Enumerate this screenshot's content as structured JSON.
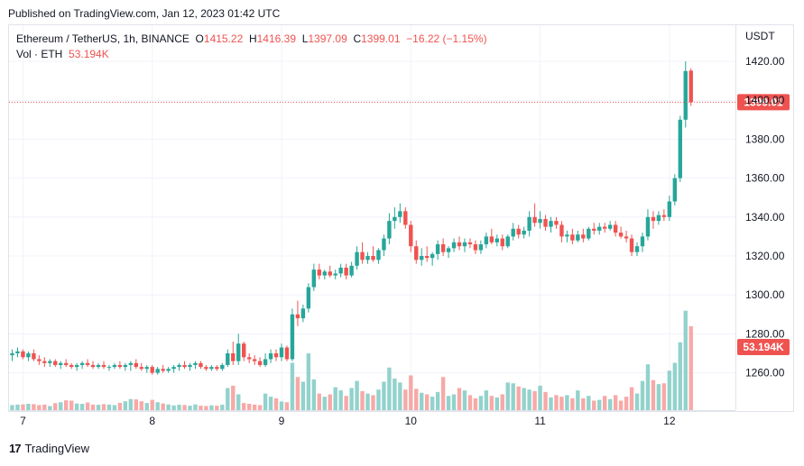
{
  "header": {
    "published": "Published on TradingView.com, Jan 12, 2023 01:42 UTC"
  },
  "legend": {
    "symbol": "Ethereum / TetherUS, 1h, BINANCE",
    "open_label": "O",
    "open": "1415.22",
    "high_label": "H",
    "high": "1416.39",
    "low_label": "L",
    "low": "1397.09",
    "close_label": "C",
    "close": "1399.01",
    "change": "−16.22 (−1.15%)",
    "volume_label": "Vol · ETH",
    "volume": "53.194K"
  },
  "axis": {
    "currency": "USDT"
  },
  "footer": {
    "brand": "TradingView"
  },
  "colors": {
    "up": "#26a69a",
    "down": "#ef5350",
    "vol_up": "#92d2cc",
    "vol_down": "#f7a9a7",
    "grid": "#f0f3fa"
  },
  "chart_data": {
    "type": "candlestick",
    "y_axis": {
      "ticks": [
        1260,
        1280,
        1300,
        1320,
        1340,
        1360,
        1380,
        1400,
        1420
      ],
      "range": [
        1246.5,
        1430
      ]
    },
    "x_axis": {
      "ticks": [
        {
          "label": "7",
          "index": 2
        },
        {
          "label": "8",
          "index": 26
        },
        {
          "label": "9",
          "index": 50
        },
        {
          "label": "10",
          "index": 74
        },
        {
          "label": "11",
          "index": 98
        },
        {
          "label": "12",
          "index": 122
        }
      ]
    },
    "last_price": {
      "value": 1399.01,
      "label": "1399.01"
    },
    "last_volume": {
      "label": "53.194K"
    },
    "candles": [
      {
        "o": 1269,
        "h": 1272,
        "l": 1266,
        "c": 1270,
        "v": 3.2
      },
      {
        "o": 1270,
        "h": 1273,
        "l": 1268,
        "c": 1271,
        "v": 3.5
      },
      {
        "o": 1271,
        "h": 1272,
        "l": 1267,
        "c": 1268,
        "v": 3.6
      },
      {
        "o": 1268,
        "h": 1271,
        "l": 1266,
        "c": 1270,
        "v": 4.0
      },
      {
        "o": 1270,
        "h": 1272,
        "l": 1266,
        "c": 1267,
        "v": 3.8
      },
      {
        "o": 1267,
        "h": 1269,
        "l": 1264,
        "c": 1266,
        "v": 3.2
      },
      {
        "o": 1266,
        "h": 1268,
        "l": 1263,
        "c": 1265,
        "v": 3.5
      },
      {
        "o": 1265,
        "h": 1267,
        "l": 1263,
        "c": 1266,
        "v": 2.6
      },
      {
        "o": 1266,
        "h": 1267,
        "l": 1263,
        "c": 1264,
        "v": 4.4
      },
      {
        "o": 1264,
        "h": 1266,
        "l": 1262,
        "c": 1265,
        "v": 5.0
      },
      {
        "o": 1265,
        "h": 1267,
        "l": 1263,
        "c": 1264,
        "v": 6.2
      },
      {
        "o": 1264,
        "h": 1265,
        "l": 1262,
        "c": 1263,
        "v": 6.0
      },
      {
        "o": 1263,
        "h": 1265,
        "l": 1261,
        "c": 1264,
        "v": 4.2
      },
      {
        "o": 1264,
        "h": 1266,
        "l": 1262,
        "c": 1265,
        "v": 4.0
      },
      {
        "o": 1265,
        "h": 1267,
        "l": 1263,
        "c": 1264,
        "v": 4.8
      },
      {
        "o": 1264,
        "h": 1266,
        "l": 1262,
        "c": 1263,
        "v": 3.5
      },
      {
        "o": 1263,
        "h": 1265,
        "l": 1262,
        "c": 1264,
        "v": 3.4
      },
      {
        "o": 1264,
        "h": 1266,
        "l": 1262,
        "c": 1263,
        "v": 3.8
      },
      {
        "o": 1263,
        "h": 1264,
        "l": 1261,
        "c": 1263,
        "v": 3.5
      },
      {
        "o": 1263,
        "h": 1265,
        "l": 1262,
        "c": 1264,
        "v": 3.2
      },
      {
        "o": 1264,
        "h": 1266,
        "l": 1262,
        "c": 1263,
        "v": 4.6
      },
      {
        "o": 1263,
        "h": 1265,
        "l": 1261,
        "c": 1264,
        "v": 5.6
      },
      {
        "o": 1264,
        "h": 1266,
        "l": 1261,
        "c": 1265,
        "v": 7.0
      },
      {
        "o": 1265,
        "h": 1267,
        "l": 1262,
        "c": 1263,
        "v": 6.8
      },
      {
        "o": 1263,
        "h": 1265,
        "l": 1261,
        "c": 1262,
        "v": 5.6
      },
      {
        "o": 1262,
        "h": 1264,
        "l": 1260,
        "c": 1263,
        "v": 4.5
      },
      {
        "o": 1263,
        "h": 1264,
        "l": 1259,
        "c": 1260,
        "v": 6.5
      },
      {
        "o": 1260,
        "h": 1263,
        "l": 1259,
        "c": 1262,
        "v": 5.0
      },
      {
        "o": 1262,
        "h": 1264,
        "l": 1260,
        "c": 1261,
        "v": 4.2
      },
      {
        "o": 1261,
        "h": 1263,
        "l": 1260,
        "c": 1262,
        "v": 3.6
      },
      {
        "o": 1262,
        "h": 1264,
        "l": 1260,
        "c": 1263,
        "v": 3.0
      },
      {
        "o": 1263,
        "h": 1265,
        "l": 1261,
        "c": 1264,
        "v": 3.4
      },
      {
        "o": 1264,
        "h": 1266,
        "l": 1262,
        "c": 1263,
        "v": 3.2
      },
      {
        "o": 1263,
        "h": 1265,
        "l": 1261,
        "c": 1264,
        "v": 2.8
      },
      {
        "o": 1264,
        "h": 1266,
        "l": 1262,
        "c": 1265,
        "v": 3.6
      },
      {
        "o": 1265,
        "h": 1266,
        "l": 1262,
        "c": 1263,
        "v": 2.8
      },
      {
        "o": 1263,
        "h": 1264,
        "l": 1261,
        "c": 1262,
        "v": 2.6
      },
      {
        "o": 1262,
        "h": 1264,
        "l": 1261,
        "c": 1263,
        "v": 3.0
      },
      {
        "o": 1263,
        "h": 1264,
        "l": 1261,
        "c": 1262,
        "v": 2.8
      },
      {
        "o": 1262,
        "h": 1265,
        "l": 1261,
        "c": 1264,
        "v": 3.4
      },
      {
        "o": 1264,
        "h": 1272,
        "l": 1263,
        "c": 1270,
        "v": 14.0
      },
      {
        "o": 1270,
        "h": 1276,
        "l": 1264,
        "c": 1266,
        "v": 15.5
      },
      {
        "o": 1266,
        "h": 1280,
        "l": 1264,
        "c": 1275,
        "v": 10.0
      },
      {
        "o": 1275,
        "h": 1276,
        "l": 1266,
        "c": 1268,
        "v": 4.5
      },
      {
        "o": 1268,
        "h": 1270,
        "l": 1265,
        "c": 1267,
        "v": 4.0
      },
      {
        "o": 1267,
        "h": 1269,
        "l": 1264,
        "c": 1266,
        "v": 3.5
      },
      {
        "o": 1266,
        "h": 1268,
        "l": 1263,
        "c": 1264,
        "v": 3.2
      },
      {
        "o": 1264,
        "h": 1270,
        "l": 1263,
        "c": 1267,
        "v": 10.5
      },
      {
        "o": 1267,
        "h": 1272,
        "l": 1265,
        "c": 1270,
        "v": 8.5
      },
      {
        "o": 1270,
        "h": 1272,
        "l": 1266,
        "c": 1268,
        "v": 7.5
      },
      {
        "o": 1268,
        "h": 1275,
        "l": 1266,
        "c": 1273,
        "v": 5.5
      },
      {
        "o": 1273,
        "h": 1274,
        "l": 1266,
        "c": 1267,
        "v": 5.0
      },
      {
        "o": 1267,
        "h": 1293,
        "l": 1266,
        "c": 1290,
        "v": 30.0
      },
      {
        "o": 1290,
        "h": 1297,
        "l": 1284,
        "c": 1288,
        "v": 21.0
      },
      {
        "o": 1288,
        "h": 1295,
        "l": 1286,
        "c": 1293,
        "v": 18.0
      },
      {
        "o": 1293,
        "h": 1306,
        "l": 1291,
        "c": 1304,
        "v": 36.0
      },
      {
        "o": 1304,
        "h": 1316,
        "l": 1302,
        "c": 1313,
        "v": 19.5
      },
      {
        "o": 1313,
        "h": 1316,
        "l": 1308,
        "c": 1310,
        "v": 10.5
      },
      {
        "o": 1310,
        "h": 1313,
        "l": 1308,
        "c": 1312,
        "v": 8.5
      },
      {
        "o": 1312,
        "h": 1315,
        "l": 1309,
        "c": 1310,
        "v": 10.0
      },
      {
        "o": 1310,
        "h": 1313,
        "l": 1308,
        "c": 1311,
        "v": 14.5
      },
      {
        "o": 1311,
        "h": 1316,
        "l": 1309,
        "c": 1314,
        "v": 12.5
      },
      {
        "o": 1314,
        "h": 1316,
        "l": 1308,
        "c": 1310,
        "v": 9.0
      },
      {
        "o": 1310,
        "h": 1317,
        "l": 1309,
        "c": 1315,
        "v": 14.0
      },
      {
        "o": 1315,
        "h": 1325,
        "l": 1313,
        "c": 1322,
        "v": 18.5
      },
      {
        "o": 1322,
        "h": 1327,
        "l": 1316,
        "c": 1318,
        "v": 12.0
      },
      {
        "o": 1318,
        "h": 1322,
        "l": 1316,
        "c": 1320,
        "v": 10.5
      },
      {
        "o": 1320,
        "h": 1325,
        "l": 1317,
        "c": 1318,
        "v": 9.5
      },
      {
        "o": 1318,
        "h": 1324,
        "l": 1316,
        "c": 1323,
        "v": 13.0
      },
      {
        "o": 1323,
        "h": 1331,
        "l": 1320,
        "c": 1329,
        "v": 18.0
      },
      {
        "o": 1329,
        "h": 1342,
        "l": 1326,
        "c": 1338,
        "v": 27.0
      },
      {
        "o": 1338,
        "h": 1345,
        "l": 1334,
        "c": 1340,
        "v": 20.0
      },
      {
        "o": 1340,
        "h": 1347,
        "l": 1337,
        "c": 1343,
        "v": 17.5
      },
      {
        "o": 1343,
        "h": 1345,
        "l": 1334,
        "c": 1336,
        "v": 13.0
      },
      {
        "o": 1336,
        "h": 1338,
        "l": 1322,
        "c": 1325,
        "v": 22.0
      },
      {
        "o": 1325,
        "h": 1328,
        "l": 1316,
        "c": 1318,
        "v": 13.5
      },
      {
        "o": 1318,
        "h": 1324,
        "l": 1315,
        "c": 1320,
        "v": 11.0
      },
      {
        "o": 1320,
        "h": 1325,
        "l": 1317,
        "c": 1319,
        "v": 10.0
      },
      {
        "o": 1319,
        "h": 1322,
        "l": 1315,
        "c": 1321,
        "v": 8.5
      },
      {
        "o": 1321,
        "h": 1328,
        "l": 1318,
        "c": 1326,
        "v": 11.5
      },
      {
        "o": 1326,
        "h": 1329,
        "l": 1320,
        "c": 1322,
        "v": 21.0
      },
      {
        "o": 1322,
        "h": 1325,
        "l": 1319,
        "c": 1324,
        "v": 9.0
      },
      {
        "o": 1324,
        "h": 1329,
        "l": 1322,
        "c": 1327,
        "v": 10.0
      },
      {
        "o": 1327,
        "h": 1330,
        "l": 1323,
        "c": 1325,
        "v": 14.0
      },
      {
        "o": 1325,
        "h": 1329,
        "l": 1322,
        "c": 1327,
        "v": 12.5
      },
      {
        "o": 1327,
        "h": 1329,
        "l": 1324,
        "c": 1326,
        "v": 9.5
      },
      {
        "o": 1326,
        "h": 1328,
        "l": 1321,
        "c": 1323,
        "v": 7.5
      },
      {
        "o": 1323,
        "h": 1328,
        "l": 1321,
        "c": 1326,
        "v": 9.0
      },
      {
        "o": 1326,
        "h": 1332,
        "l": 1324,
        "c": 1330,
        "v": 12.5
      },
      {
        "o": 1330,
        "h": 1334,
        "l": 1326,
        "c": 1327,
        "v": 9.0
      },
      {
        "o": 1327,
        "h": 1331,
        "l": 1325,
        "c": 1329,
        "v": 8.0
      },
      {
        "o": 1329,
        "h": 1331,
        "l": 1323,
        "c": 1325,
        "v": 10.0
      },
      {
        "o": 1325,
        "h": 1331,
        "l": 1324,
        "c": 1330,
        "v": 17.5
      },
      {
        "o": 1330,
        "h": 1337,
        "l": 1328,
        "c": 1334,
        "v": 17.0
      },
      {
        "o": 1334,
        "h": 1336,
        "l": 1329,
        "c": 1331,
        "v": 15.0
      },
      {
        "o": 1331,
        "h": 1335,
        "l": 1329,
        "c": 1333,
        "v": 14.0
      },
      {
        "o": 1333,
        "h": 1343,
        "l": 1330,
        "c": 1340,
        "v": 13.0
      },
      {
        "o": 1340,
        "h": 1347,
        "l": 1335,
        "c": 1337,
        "v": 12.0
      },
      {
        "o": 1337,
        "h": 1343,
        "l": 1334,
        "c": 1339,
        "v": 15.5
      },
      {
        "o": 1339,
        "h": 1341,
        "l": 1333,
        "c": 1335,
        "v": 11.5
      },
      {
        "o": 1335,
        "h": 1340,
        "l": 1332,
        "c": 1338,
        "v": 8.0
      },
      {
        "o": 1338,
        "h": 1340,
        "l": 1334,
        "c": 1336,
        "v": 9.5
      },
      {
        "o": 1336,
        "h": 1338,
        "l": 1327,
        "c": 1330,
        "v": 8.5
      },
      {
        "o": 1330,
        "h": 1333,
        "l": 1327,
        "c": 1331,
        "v": 9.5
      },
      {
        "o": 1331,
        "h": 1334,
        "l": 1326,
        "c": 1328,
        "v": 7.5
      },
      {
        "o": 1328,
        "h": 1333,
        "l": 1327,
        "c": 1331,
        "v": 12.5
      },
      {
        "o": 1331,
        "h": 1334,
        "l": 1327,
        "c": 1329,
        "v": 7.5
      },
      {
        "o": 1329,
        "h": 1335,
        "l": 1328,
        "c": 1334,
        "v": 9.0
      },
      {
        "o": 1334,
        "h": 1337,
        "l": 1331,
        "c": 1333,
        "v": 6.0
      },
      {
        "o": 1333,
        "h": 1337,
        "l": 1331,
        "c": 1335,
        "v": 6.5
      },
      {
        "o": 1335,
        "h": 1337,
        "l": 1332,
        "c": 1334,
        "v": 9.0
      },
      {
        "o": 1334,
        "h": 1338,
        "l": 1333,
        "c": 1336,
        "v": 7.0
      },
      {
        "o": 1336,
        "h": 1338,
        "l": 1330,
        "c": 1332,
        "v": 9.5
      },
      {
        "o": 1332,
        "h": 1335,
        "l": 1329,
        "c": 1330,
        "v": 6.0
      },
      {
        "o": 1330,
        "h": 1333,
        "l": 1327,
        "c": 1329,
        "v": 8.5
      },
      {
        "o": 1329,
        "h": 1331,
        "l": 1320,
        "c": 1322,
        "v": 14.5
      },
      {
        "o": 1322,
        "h": 1327,
        "l": 1320,
        "c": 1325,
        "v": 10.5
      },
      {
        "o": 1325,
        "h": 1332,
        "l": 1322,
        "c": 1330,
        "v": 18.5
      },
      {
        "o": 1330,
        "h": 1344,
        "l": 1328,
        "c": 1340,
        "v": 29.0
      },
      {
        "o": 1340,
        "h": 1343,
        "l": 1334,
        "c": 1338,
        "v": 19.0
      },
      {
        "o": 1338,
        "h": 1343,
        "l": 1336,
        "c": 1341,
        "v": 16.5
      },
      {
        "o": 1341,
        "h": 1344,
        "l": 1338,
        "c": 1340,
        "v": 17.0
      },
      {
        "o": 1340,
        "h": 1351,
        "l": 1338,
        "c": 1348,
        "v": 25.0
      },
      {
        "o": 1348,
        "h": 1362,
        "l": 1346,
        "c": 1360,
        "v": 30.0
      },
      {
        "o": 1360,
        "h": 1392,
        "l": 1358,
        "c": 1390,
        "v": 43.0
      },
      {
        "o": 1390,
        "h": 1420,
        "l": 1386,
        "c": 1415,
        "v": 63.0
      },
      {
        "o": 1415.22,
        "h": 1416.39,
        "l": 1397.09,
        "c": 1399.01,
        "v": 53.194
      }
    ]
  }
}
